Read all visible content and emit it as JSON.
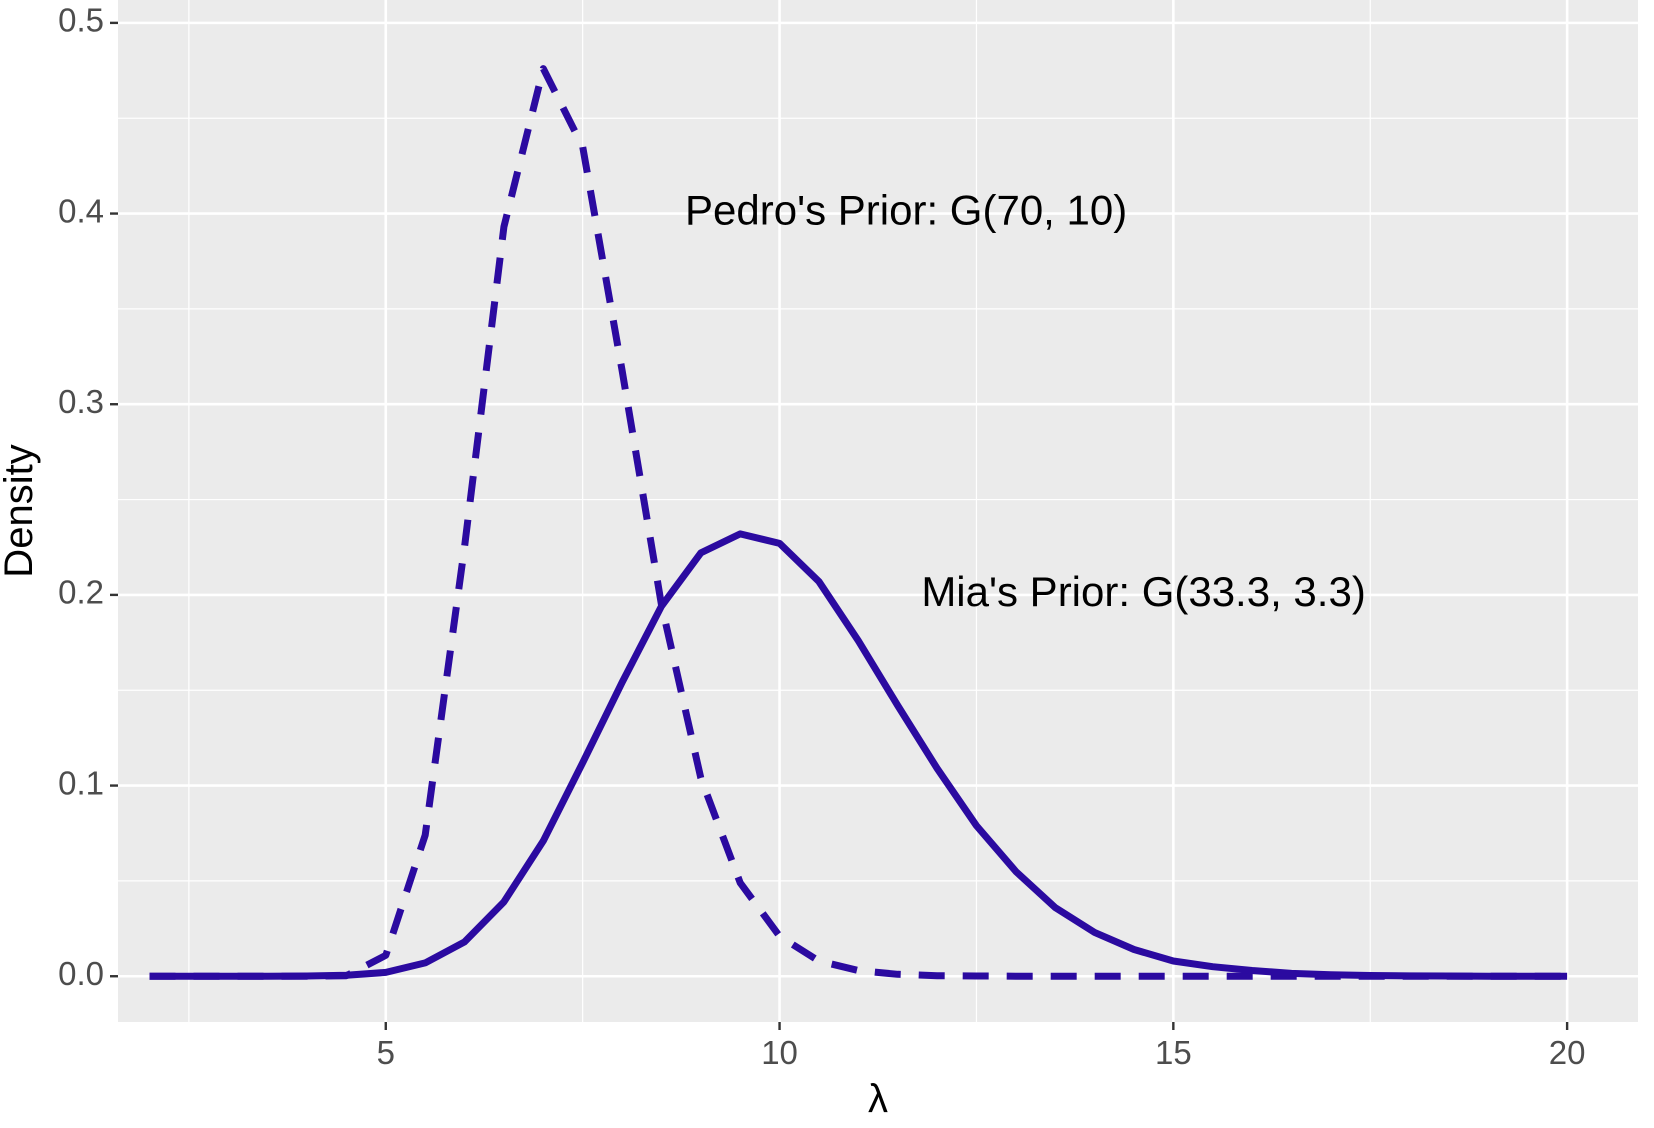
{
  "chart_data": {
    "type": "line",
    "title": "",
    "xlabel": "λ",
    "ylabel": "Density",
    "xlim": [
      1.6,
      20.9
    ],
    "ylim": [
      -0.024,
      0.512
    ],
    "x_ticks": [
      5,
      10,
      15,
      20
    ],
    "x_tick_labels": [
      "5",
      "10",
      "15",
      "20"
    ],
    "y_ticks": [
      0.0,
      0.1,
      0.2,
      0.3,
      0.4,
      0.5
    ],
    "y_tick_labels": [
      "0.0",
      "0.1",
      "0.2",
      "0.3",
      "0.4",
      "0.5"
    ],
    "grid": true,
    "legend": "none",
    "x": [
      2.0,
      2.5,
      3.0,
      3.5,
      4.0,
      4.5,
      5.0,
      5.5,
      6.0,
      6.5,
      7.0,
      7.5,
      8.0,
      8.5,
      9.0,
      9.5,
      10.0,
      10.5,
      11.0,
      11.5,
      12.0,
      12.5,
      13.0,
      13.5,
      14.0,
      14.5,
      15.0,
      15.5,
      16.0,
      16.5,
      17.0,
      17.5,
      18.0,
      18.5,
      19.0,
      19.5,
      20.0
    ],
    "series": [
      {
        "name": "Pedro's Prior: G(70, 10)",
        "style": "dashed",
        "color": "#2b0aa0",
        "values": [
          0.0,
          0.0,
          0.0,
          0.0,
          0.0,
          0.0003,
          0.011,
          0.074,
          0.225,
          0.393,
          0.476,
          0.435,
          0.318,
          0.195,
          0.104,
          0.049,
          0.021,
          0.008,
          0.003,
          0.001,
          0.0003,
          0.0001,
          0.0,
          0.0,
          0.0,
          0.0,
          0.0,
          0.0,
          0.0,
          0.0,
          0.0,
          0.0,
          0.0,
          0.0,
          0.0,
          0.0,
          0.0
        ]
      },
      {
        "name": "Mia's Prior: G(33.3, 3.3)",
        "style": "solid",
        "color": "#2b0aa0",
        "values": [
          0.0,
          0.0,
          0.0,
          0.0,
          0.0001,
          0.0005,
          0.002,
          0.007,
          0.018,
          0.039,
          0.071,
          0.112,
          0.154,
          0.194,
          0.222,
          0.232,
          0.227,
          0.207,
          0.176,
          0.142,
          0.109,
          0.079,
          0.055,
          0.036,
          0.023,
          0.014,
          0.008,
          0.005,
          0.003,
          0.0015,
          0.0008,
          0.0004,
          0.0002,
          0.0001,
          0.0,
          0.0,
          0.0
        ]
      }
    ],
    "annotations": [
      {
        "text": "Pedro's Prior: G(70, 10)",
        "x": 8.8,
        "y": 0.4
      },
      {
        "text": "Mia's Prior: G(33.3, 3.3)",
        "x": 11.8,
        "y": 0.2
      }
    ]
  }
}
